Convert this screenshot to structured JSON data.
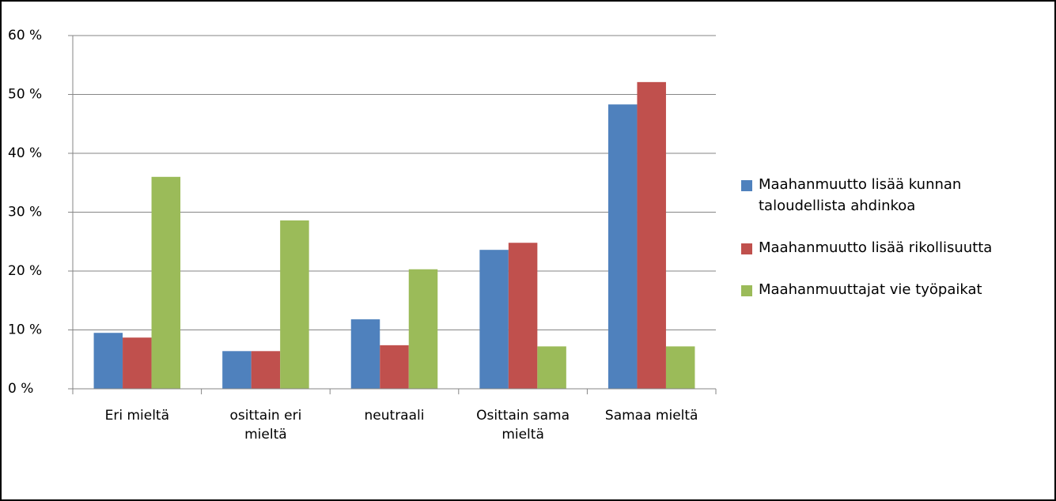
{
  "chart_data": {
    "type": "bar",
    "categories": [
      "Eri mieltä",
      "osittain eri mieltä",
      "neutraali",
      "Osittain sama mieltä",
      "Samaa mieltä"
    ],
    "series": [
      {
        "name": "Maahanmuutto lisää kunnan taloudellista ahdinkoa",
        "color": "#4f81bd",
        "values": [
          9.5,
          6.4,
          11.8,
          23.6,
          48.3
        ]
      },
      {
        "name": "Maahanmuutto lisää rikollisuutta",
        "color": "#c0504d",
        "values": [
          8.7,
          6.4,
          7.4,
          24.8,
          52.1
        ]
      },
      {
        "name": "Maahanmuuttajat vie työpaikat",
        "color": "#9bbb59",
        "values": [
          36.0,
          28.6,
          20.3,
          7.2,
          7.2
        ]
      }
    ],
    "ylim": [
      0,
      60
    ],
    "yticks": [
      {
        "value": 0,
        "label": "0 %"
      },
      {
        "value": 10,
        "label": "10 %"
      },
      {
        "value": 20,
        "label": "20 %"
      },
      {
        "value": 30,
        "label": "30 %"
      },
      {
        "value": 40,
        "label": "40 %"
      },
      {
        "value": 50,
        "label": "50 %"
      },
      {
        "value": 60,
        "label": "60 %"
      }
    ],
    "grid": true,
    "legend": "right"
  }
}
